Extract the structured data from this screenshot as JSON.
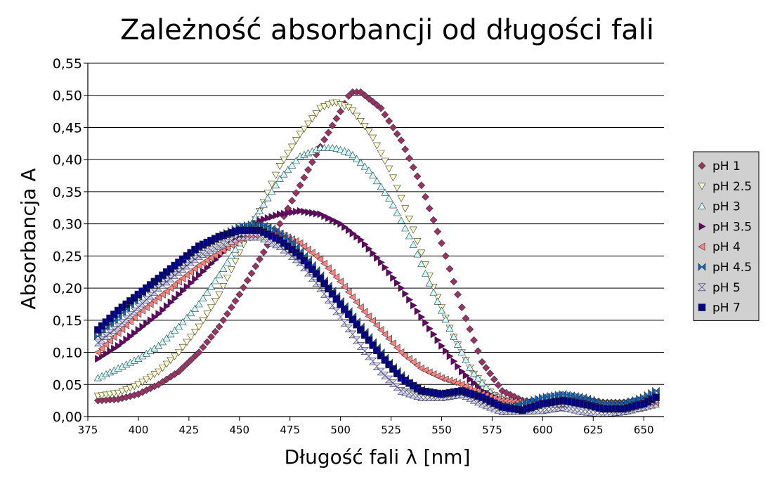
{
  "chart_data": {
    "type": "scatter",
    "title": "Zależność absorbancji od długości fali",
    "xlabel": "Długość fali λ [nm]",
    "ylabel": "Absorbancja A",
    "xlim": [
      375,
      660
    ],
    "ylim": [
      0,
      0.55
    ],
    "x_ticks": [
      375,
      400,
      425,
      450,
      475,
      500,
      525,
      550,
      575,
      600,
      625,
      650
    ],
    "y_ticks": [
      0,
      0.05,
      0.1,
      0.15,
      0.2,
      0.25,
      0.3,
      0.35,
      0.4,
      0.45,
      0.5,
      0.55
    ],
    "y_tick_labels": [
      "0,00",
      "0,05",
      "0,10",
      "0,15",
      "0,20",
      "0,25",
      "0,30",
      "0,35",
      "0,40",
      "0,45",
      "0,50",
      "0,55"
    ],
    "grid": "horizontal",
    "legend_position": "right",
    "series": [
      {
        "name": "pH 1",
        "marker": "diamond",
        "color": "#993366",
        "points": [
          [
            380,
            0.025
          ],
          [
            390,
            0.027
          ],
          [
            400,
            0.035
          ],
          [
            410,
            0.05
          ],
          [
            420,
            0.07
          ],
          [
            430,
            0.1
          ],
          [
            440,
            0.14
          ],
          [
            450,
            0.19
          ],
          [
            460,
            0.245
          ],
          [
            470,
            0.3
          ],
          [
            480,
            0.36
          ],
          [
            490,
            0.42
          ],
          [
            500,
            0.475
          ],
          [
            505,
            0.505
          ],
          [
            510,
            0.505
          ],
          [
            520,
            0.48
          ],
          [
            530,
            0.43
          ],
          [
            540,
            0.36
          ],
          [
            550,
            0.27
          ],
          [
            560,
            0.17
          ],
          [
            570,
            0.085
          ],
          [
            580,
            0.04
          ],
          [
            590,
            0.025
          ],
          [
            600,
            0.02
          ],
          [
            610,
            0.025
          ],
          [
            620,
            0.025
          ],
          [
            630,
            0.022
          ],
          [
            640,
            0.022
          ],
          [
            650,
            0.025
          ],
          [
            656,
            0.03
          ]
        ]
      },
      {
        "name": "pH 2.5",
        "marker": "triangle-down",
        "color": "#FFFFCC",
        "points": [
          [
            380,
            0.032
          ],
          [
            390,
            0.037
          ],
          [
            400,
            0.05
          ],
          [
            410,
            0.07
          ],
          [
            420,
            0.1
          ],
          [
            430,
            0.14
          ],
          [
            440,
            0.19
          ],
          [
            450,
            0.255
          ],
          [
            460,
            0.32
          ],
          [
            470,
            0.39
          ],
          [
            480,
            0.44
          ],
          [
            490,
            0.48
          ],
          [
            497,
            0.49
          ],
          [
            505,
            0.48
          ],
          [
            515,
            0.44
          ],
          [
            525,
            0.38
          ],
          [
            535,
            0.3
          ],
          [
            545,
            0.21
          ],
          [
            555,
            0.13
          ],
          [
            565,
            0.07
          ],
          [
            575,
            0.035
          ],
          [
            585,
            0.02
          ],
          [
            600,
            0.018
          ],
          [
            620,
            0.018
          ],
          [
            640,
            0.02
          ],
          [
            656,
            0.025
          ]
        ]
      },
      {
        "name": "pH 3",
        "marker": "triangle-up",
        "color": "#CCFFFF",
        "points": [
          [
            380,
            0.06
          ],
          [
            390,
            0.075
          ],
          [
            400,
            0.09
          ],
          [
            410,
            0.11
          ],
          [
            420,
            0.14
          ],
          [
            430,
            0.175
          ],
          [
            440,
            0.22
          ],
          [
            450,
            0.27
          ],
          [
            460,
            0.32
          ],
          [
            470,
            0.37
          ],
          [
            480,
            0.405
          ],
          [
            490,
            0.418
          ],
          [
            497,
            0.418
          ],
          [
            505,
            0.41
          ],
          [
            515,
            0.38
          ],
          [
            525,
            0.335
          ],
          [
            535,
            0.275
          ],
          [
            545,
            0.2
          ],
          [
            555,
            0.13
          ],
          [
            565,
            0.07
          ],
          [
            575,
            0.035
          ],
          [
            585,
            0.02
          ],
          [
            600,
            0.018
          ],
          [
            620,
            0.02
          ],
          [
            640,
            0.02
          ],
          [
            656,
            0.025
          ]
        ]
      },
      {
        "name": "pH 3.5",
        "marker": "triangle-right",
        "color": "#660066",
        "points": [
          [
            380,
            0.09
          ],
          [
            390,
            0.11
          ],
          [
            400,
            0.135
          ],
          [
            410,
            0.16
          ],
          [
            420,
            0.19
          ],
          [
            430,
            0.22
          ],
          [
            440,
            0.25
          ],
          [
            450,
            0.28
          ],
          [
            460,
            0.305
          ],
          [
            470,
            0.315
          ],
          [
            480,
            0.32
          ],
          [
            490,
            0.315
          ],
          [
            500,
            0.3
          ],
          [
            510,
            0.275
          ],
          [
            520,
            0.24
          ],
          [
            530,
            0.2
          ],
          [
            540,
            0.155
          ],
          [
            550,
            0.11
          ],
          [
            560,
            0.07
          ],
          [
            570,
            0.04
          ],
          [
            580,
            0.025
          ],
          [
            600,
            0.02
          ],
          [
            620,
            0.02
          ],
          [
            640,
            0.02
          ],
          [
            656,
            0.025
          ]
        ]
      },
      {
        "name": "pH 4",
        "marker": "triangle-left",
        "color": "#FF8080",
        "points": [
          [
            380,
            0.1
          ],
          [
            390,
            0.13
          ],
          [
            400,
            0.16
          ],
          [
            410,
            0.185
          ],
          [
            420,
            0.21
          ],
          [
            430,
            0.235
          ],
          [
            440,
            0.255
          ],
          [
            450,
            0.275
          ],
          [
            460,
            0.285
          ],
          [
            470,
            0.285
          ],
          [
            480,
            0.27
          ],
          [
            490,
            0.245
          ],
          [
            500,
            0.21
          ],
          [
            510,
            0.17
          ],
          [
            520,
            0.135
          ],
          [
            530,
            0.1
          ],
          [
            540,
            0.075
          ],
          [
            550,
            0.06
          ],
          [
            560,
            0.05
          ],
          [
            570,
            0.035
          ],
          [
            580,
            0.025
          ],
          [
            600,
            0.02
          ],
          [
            620,
            0.02
          ],
          [
            640,
            0.018
          ],
          [
            656,
            0.022
          ]
        ]
      },
      {
        "name": "pH 4.5",
        "marker": "bowtie",
        "color": "#0066CC",
        "points": [
          [
            380,
            0.125
          ],
          [
            390,
            0.155
          ],
          [
            400,
            0.185
          ],
          [
            410,
            0.21
          ],
          [
            420,
            0.235
          ],
          [
            430,
            0.26
          ],
          [
            440,
            0.28
          ],
          [
            450,
            0.295
          ],
          [
            457,
            0.3
          ],
          [
            465,
            0.295
          ],
          [
            475,
            0.275
          ],
          [
            485,
            0.24
          ],
          [
            495,
            0.2
          ],
          [
            505,
            0.16
          ],
          [
            515,
            0.12
          ],
          [
            525,
            0.08
          ],
          [
            535,
            0.05
          ],
          [
            545,
            0.035
          ],
          [
            555,
            0.035
          ],
          [
            565,
            0.035
          ],
          [
            575,
            0.02
          ],
          [
            585,
            0.015
          ],
          [
            600,
            0.03
          ],
          [
            610,
            0.035
          ],
          [
            620,
            0.03
          ],
          [
            630,
            0.02
          ],
          [
            640,
            0.02
          ],
          [
            650,
            0.03
          ],
          [
            656,
            0.04
          ]
        ]
      },
      {
        "name": "pH 5",
        "marker": "hourglass",
        "color": "#CCCCFF",
        "points": [
          [
            380,
            0.115
          ],
          [
            390,
            0.14
          ],
          [
            400,
            0.17
          ],
          [
            410,
            0.2
          ],
          [
            420,
            0.225
          ],
          [
            430,
            0.25
          ],
          [
            440,
            0.265
          ],
          [
            450,
            0.28
          ],
          [
            460,
            0.28
          ],
          [
            470,
            0.265
          ],
          [
            480,
            0.24
          ],
          [
            490,
            0.2
          ],
          [
            500,
            0.155
          ],
          [
            510,
            0.11
          ],
          [
            520,
            0.07
          ],
          [
            530,
            0.04
          ],
          [
            540,
            0.03
          ],
          [
            550,
            0.03
          ],
          [
            560,
            0.035
          ],
          [
            570,
            0.02
          ],
          [
            580,
            0.008
          ],
          [
            600,
            0.01
          ],
          [
            610,
            0.015
          ],
          [
            620,
            0.008
          ],
          [
            630,
            0.005
          ],
          [
            640,
            0.008
          ],
          [
            650,
            0.015
          ],
          [
            656,
            0.02
          ]
        ]
      },
      {
        "name": "pH 7",
        "marker": "square",
        "color": "#000080",
        "points": [
          [
            380,
            0.135
          ],
          [
            390,
            0.165
          ],
          [
            400,
            0.19
          ],
          [
            410,
            0.215
          ],
          [
            420,
            0.24
          ],
          [
            430,
            0.265
          ],
          [
            440,
            0.28
          ],
          [
            450,
            0.29
          ],
          [
            460,
            0.29
          ],
          [
            470,
            0.275
          ],
          [
            480,
            0.25
          ],
          [
            490,
            0.215
          ],
          [
            500,
            0.175
          ],
          [
            510,
            0.135
          ],
          [
            520,
            0.095
          ],
          [
            530,
            0.06
          ],
          [
            540,
            0.04
          ],
          [
            550,
            0.035
          ],
          [
            560,
            0.04
          ],
          [
            570,
            0.03
          ],
          [
            580,
            0.015
          ],
          [
            590,
            0.01
          ],
          [
            600,
            0.02
          ],
          [
            610,
            0.025
          ],
          [
            620,
            0.02
          ],
          [
            630,
            0.012
          ],
          [
            640,
            0.012
          ],
          [
            650,
            0.02
          ],
          [
            656,
            0.03
          ]
        ]
      }
    ]
  }
}
